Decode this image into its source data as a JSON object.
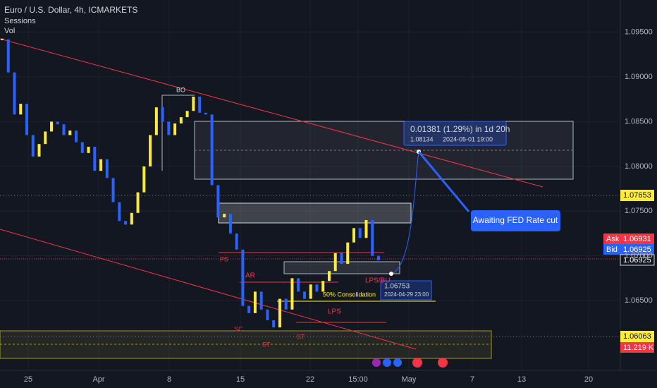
{
  "header": {
    "title": "Euro / U.S. Dollar, 4h, ICMARKETS",
    "indicators": [
      "Sessions",
      "Vol"
    ]
  },
  "chart_data": {
    "type": "candlestick",
    "values": [
      1.0942,
      1.0905,
      1.0858,
      1.087,
      1.0835,
      1.0811,
      1.0825,
      1.0839,
      1.085,
      1.0847,
      1.0835,
      1.084,
      1.0827,
      1.0815,
      1.0822,
      1.0795,
      1.0808,
      1.0787,
      1.076,
      1.0739,
      1.0735,
      1.0748,
      1.0771,
      1.08,
      1.0835,
      1.0866,
      1.085,
      1.0835,
      1.0848,
      1.0855,
      1.0862,
      1.0878,
      1.086,
      1.0858,
      1.0779,
      1.0743,
      1.0747,
      1.0725,
      1.0707,
      1.0644,
      1.0636,
      1.066,
      1.064,
      1.0628,
      1.062,
      1.0652,
      1.064,
      1.0675,
      1.066,
      1.0652,
      1.0668,
      1.066,
      1.0672,
      1.0683,
      1.0703,
      1.0691,
      1.0715,
      1.0731,
      1.072,
      1.074,
      1.07,
      1.0695
    ],
    "up_color": "#ffeb3b",
    "down_color": "#2962ff",
    "ylim": [
      1.0572,
      1.0986
    ],
    "yticks": [
      {
        "value": 1.095,
        "label": "1.09500"
      },
      {
        "value": 1.09,
        "label": "1.09000"
      },
      {
        "value": 1.085,
        "label": "1.08500"
      },
      {
        "value": 1.08,
        "label": "1.08000"
      },
      {
        "value": 1.075,
        "label": "1.07500"
      },
      {
        "value": 1.07,
        "label": "1.07000"
      },
      {
        "value": 1.065,
        "label": "1.06500"
      }
    ],
    "x_labels": [
      "25",
      "Apr",
      "8",
      "15",
      "22",
      "15:00",
      "May",
      "7",
      "13",
      "20"
    ],
    "grid": true
  },
  "annotations": {
    "bo": "BO",
    "measure": "0.01381 (1.29%) in 1d 20h",
    "measure_price": "1.08134",
    "measure_date": "2024-05-01  19:00",
    "callout": "Awaiting FED Rate cut",
    "point_price": "1.06753",
    "point_date": "2024-04-29 23:00",
    "consolidation": "50% Consolidation",
    "lps_bu": "LPS/BU",
    "lps": "LPS",
    "ar": "AR",
    "sc": "SC",
    "st1": "ST",
    "st2": "ST",
    "ps": "PS"
  },
  "price_labels": {
    "level_high": "1.07653",
    "ask": "Ask",
    "ask_price": "1.06931",
    "bid": "Bid",
    "bid_price": "1.06925",
    "last": "1.06925",
    "level_low": "1.06063",
    "volume": "11.219 K"
  }
}
